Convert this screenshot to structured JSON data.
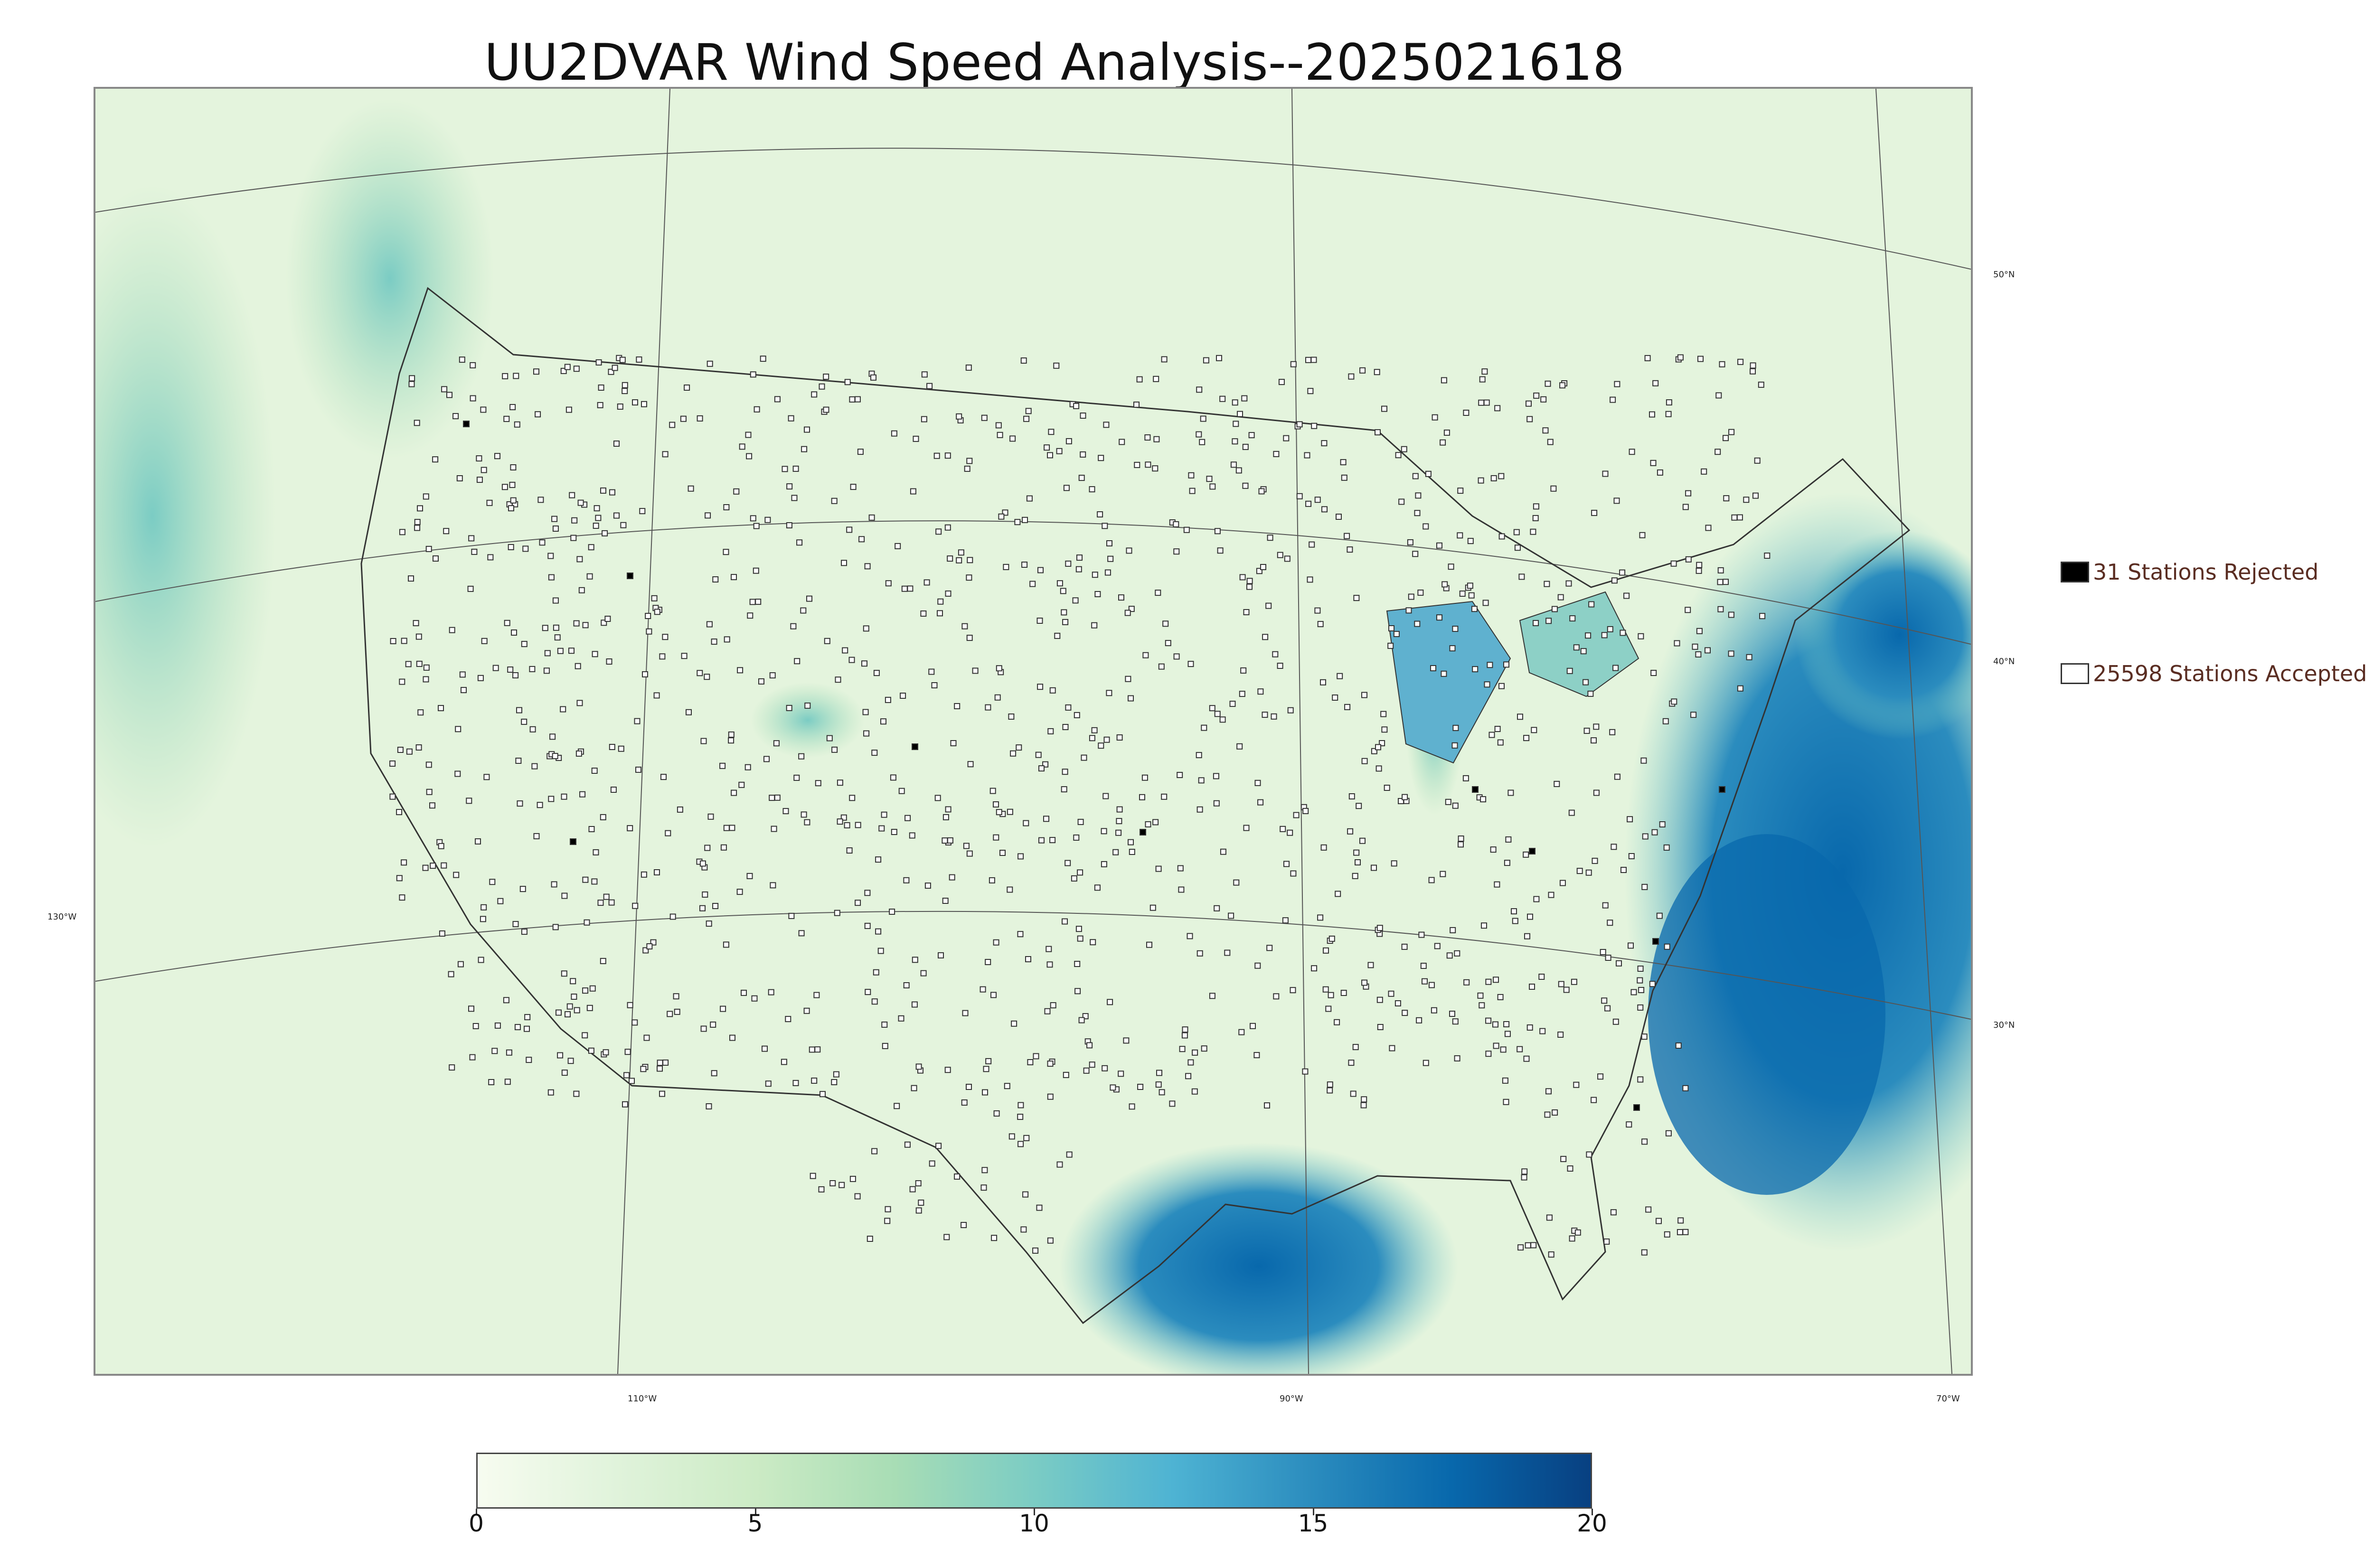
{
  "title": "UU2DVAR Wind Speed Analysis--2025021618",
  "legend": {
    "rejected": {
      "label": "31 Stations Rejected",
      "color": "#000000"
    },
    "accepted": {
      "label": "25598 Stations Accepted",
      "color": "#ffffff"
    }
  },
  "graticule": {
    "longitude_labels": [
      "110°W",
      "90°W",
      "70°W"
    ],
    "latitude_labels": [
      "50°N",
      "40°N",
      "30°N"
    ],
    "left_label": "130°W"
  },
  "colorbar": {
    "min": 0,
    "max": 20,
    "ticks": [
      "0",
      "5",
      "10",
      "15",
      "20"
    ],
    "colors": [
      "#f7fcf0",
      "#e0f3db",
      "#ccebc5",
      "#a8ddb5",
      "#7bccc4",
      "#4eb3d3",
      "#2b8cbe",
      "#0868ac",
      "#084081"
    ]
  },
  "map": {
    "type": "wind speed analysis",
    "background_color": "#e8f5e2",
    "high_wind_color": "#0868ac"
  }
}
